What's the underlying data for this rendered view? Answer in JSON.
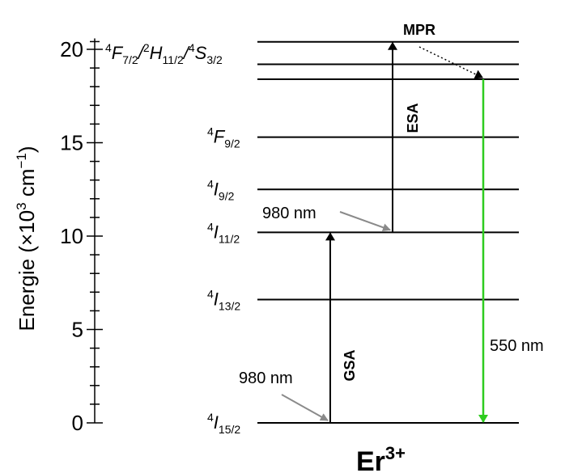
{
  "diagram": {
    "ion_label": {
      "base": "Er",
      "sup": "3+"
    },
    "axis": {
      "label_prefix": "Energie (×10",
      "label_exp": "3",
      "label_unit": " cm",
      "label_unit_exp": "−1",
      "label_suffix": ")",
      "ticks": [
        "0",
        "5",
        "10",
        "15",
        "20"
      ],
      "range": [
        0,
        20.5
      ]
    },
    "levels": [
      {
        "id": "I15",
        "energy": 0.0,
        "pre": "4",
        "term": "I",
        "sub": "15/2"
      },
      {
        "id": "I13",
        "energy": 6.6,
        "pre": "4",
        "term": "I",
        "sub": "13/2"
      },
      {
        "id": "I11",
        "energy": 10.2,
        "pre": "4",
        "term": "I",
        "sub": "11/2"
      },
      {
        "id": "I9",
        "energy": 12.5,
        "pre": "4",
        "term": "I",
        "sub": "9/2"
      },
      {
        "id": "F9",
        "energy": 15.3,
        "pre": "4",
        "term": "F",
        "sub": "9/2"
      },
      {
        "id": "S3",
        "energy": 18.4
      },
      {
        "id": "H11",
        "energy": 19.2
      },
      {
        "id": "F7",
        "energy": 20.4
      }
    ],
    "group_label": [
      {
        "pre": "4",
        "term": "F",
        "sub": "7/2"
      },
      {
        "pre": "2",
        "term": "H",
        "sub": "11/2"
      },
      {
        "pre": "4",
        "term": "S",
        "sub": "3/2"
      }
    ],
    "transitions": {
      "gsa": {
        "label": "GSA",
        "pump": "980 nm"
      },
      "esa": {
        "label": "ESA",
        "pump": "980 nm"
      },
      "mpr": {
        "label": "MPR"
      },
      "emission": {
        "wavelength": "550 nm",
        "color": "#2ecc1f"
      }
    },
    "colors": {
      "pump_arrow": "#8a8a8a",
      "line": "#000000"
    }
  }
}
